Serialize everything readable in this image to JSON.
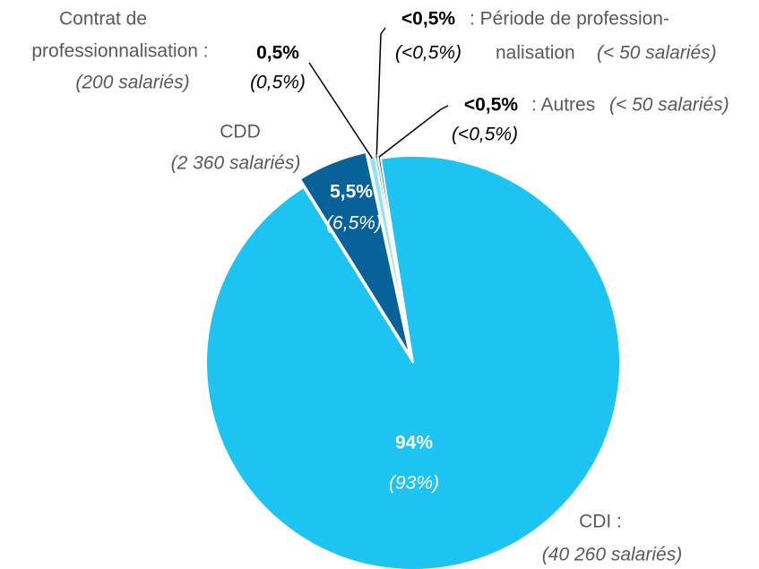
{
  "chart_data": {
    "type": "pie",
    "categories": [
      [
        "CDI :"
      ],
      [
        "CDD"
      ],
      [
        "Contrat de",
        "professionnalisation :"
      ],
      [
        ": Période de profession-",
        "nalisation"
      ],
      [
        ": Autres"
      ]
    ],
    "counts": [
      "(40 260 salariés)",
      "(2 360 salariés)",
      "(200 salariés)",
      "(< 50 salariés)",
      "(< 50 salariés)"
    ],
    "values": [
      94,
      5.5,
      0.5,
      0.2,
      0.2
    ],
    "value_labels": [
      "94%",
      "5,5%",
      "0,5%",
      "<0,5%",
      "<0,5%"
    ],
    "secondary_labels": [
      "(93%)",
      "(6,5%)",
      "(0,5%)",
      "(<0,5%)",
      "(<0,5%)"
    ],
    "colors": [
      "#1dc3f1",
      "#07629a",
      "#8fe3f5",
      "#2a9fd6",
      "#10285e"
    ]
  }
}
